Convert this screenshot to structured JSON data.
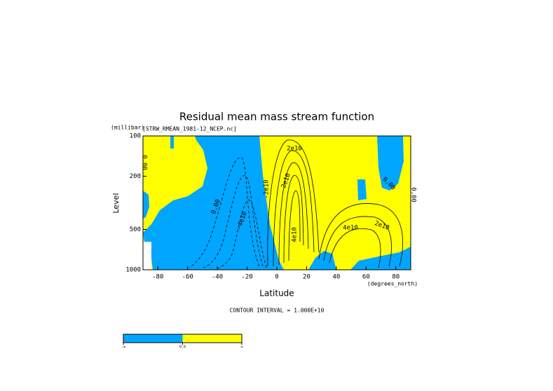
{
  "chart_data": {
    "type": "contour",
    "title": "Residual mean mass stream function",
    "subtitle": "[STRW_RMEAN_1981-12_NCEP.nc]",
    "y_unit": "(millibar)",
    "x_unit": "(degrees_north)",
    "xlabel": "Latitude",
    "ylabel": "Level",
    "xlim": [
      -90,
      90
    ],
    "xticks": [
      -80,
      -60,
      -40,
      -20,
      0,
      20,
      40,
      60,
      80
    ],
    "ylim": [
      100,
      1000
    ],
    "yticks": [
      100,
      200,
      500,
      1000
    ],
    "ylog": true,
    "ydir": "down",
    "colors": [
      "#00a6ff",
      "#ffff00"
    ],
    "contour_labels": [
      "2e10",
      "2e10",
      "4e10",
      "2e10",
      "0.00",
      "-4e10",
      "0.00",
      "-2e10",
      "4e10",
      "0.00",
      "0.00"
    ],
    "note": "CONTOUR INTERVAL = 1.000E+10",
    "colorbar_labels": [
      "-∞",
      "0.0",
      "∞"
    ]
  }
}
